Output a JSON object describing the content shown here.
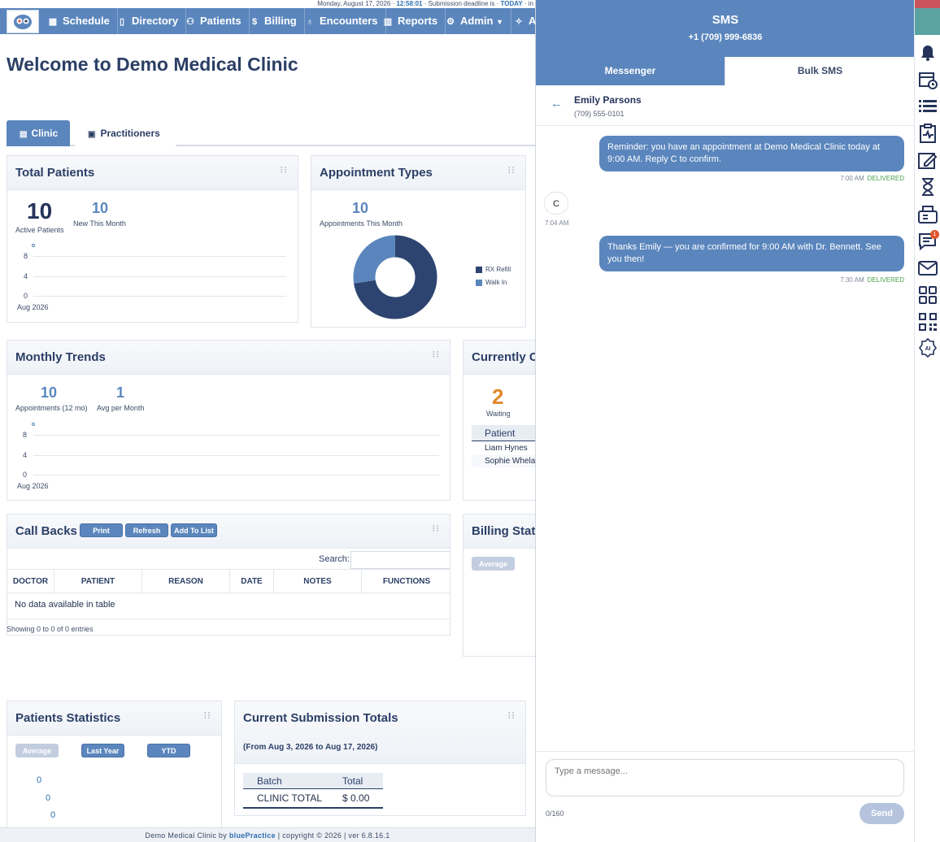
{
  "topline": {
    "date_text": "Monday, August 17, 2026 · ",
    "time": "12:58:01",
    "mid_text": " · Submission deadline is · ",
    "today": "TODAY",
    "tail": " · in"
  },
  "nav": {
    "items": [
      {
        "label": "Schedule",
        "icon": "calendar-icon"
      },
      {
        "label": "Directory",
        "icon": "book-icon"
      },
      {
        "label": "Patients",
        "icon": "people-icon"
      },
      {
        "label": "Billing",
        "icon": "dollar-icon"
      },
      {
        "label": "Encounters",
        "icon": "stethoscope-icon"
      },
      {
        "label": "Reports",
        "icon": "bar-chart-icon"
      },
      {
        "label": "Admin",
        "icon": "gear-icon"
      },
      {
        "label": "AI",
        "icon": "sparkle-icon"
      }
    ]
  },
  "welcome": "Welcome to Demo Medical Clinic",
  "tabs": {
    "clinic": "Clinic",
    "practitioners": "Practitioners"
  },
  "total_patients": {
    "title": "Total Patients",
    "active_value": "10",
    "active_label": "Active Patients",
    "new_value": "10",
    "new_label": "New This Month",
    "y_ticks": [
      "8",
      "4",
      "0"
    ],
    "x_label": "Aug 2026"
  },
  "appointment_types": {
    "title": "Appointment Types",
    "value": "10",
    "label": "Appointments This Month",
    "legend": [
      "RX Refill",
      "Walk In"
    ]
  },
  "monthly_trends": {
    "title": "Monthly Trends",
    "appts_value": "10",
    "appts_label": "Appointments (12 mo)",
    "avg_value": "1",
    "avg_label": "Avg per Month",
    "y_ticks": [
      "8",
      "4",
      "0"
    ],
    "x_label": "Aug 2026"
  },
  "currently": {
    "title": "Currently Cl",
    "waiting_value": "2",
    "waiting_label": "Waiting",
    "col_patient": "Patient",
    "rows": [
      "Liam Hynes",
      "Sophie Whela"
    ]
  },
  "callbacks": {
    "title": "Call Backs",
    "print": "Print",
    "refresh": "Refresh",
    "add": "Add To List",
    "search_label": "Search:",
    "columns": [
      "DOCTOR",
      "PATIENT",
      "REASON",
      "DATE",
      "NOTES",
      "FUNCTIONS"
    ],
    "empty": "No data available in table",
    "info": "Showing 0 to 0 of 0 entries"
  },
  "billing": {
    "title": "Billing Stati",
    "average": "Average"
  },
  "patients_stats": {
    "title": "Patients Statistics",
    "average": "Average",
    "last_year": "Last Year",
    "ytd": "YTD",
    "values": [
      "0",
      "0",
      "0"
    ]
  },
  "submission": {
    "title": "Current Submission Totals",
    "range": "(From Aug 3, 2026 to Aug 17, 2026)",
    "col_batch": "Batch",
    "col_total": "Total",
    "row_label": "CLINIC TOTAL",
    "row_value": "$ 0.00"
  },
  "footer": {
    "text": "Demo Medical Clinic by ",
    "brand": "bluePractice",
    "rest": "  |   copyright © 2026   |   ver 6.8.16.1"
  },
  "sms": {
    "title": "SMS",
    "phone": "+1 (709) 999-6836",
    "tab_messenger": "Messenger",
    "tab_bulk": "Bulk SMS",
    "contact_name": "Emily Parsons",
    "contact_phone": "(709) 555-0101",
    "messages": [
      {
        "text": "Reminder: you have an appointment at Demo Medical Clinic today at 9:00 AM. Reply C to confirm.",
        "time": "7:00 AM",
        "status": "DELIVERED"
      },
      {
        "text": "C",
        "time": "7:04 AM"
      },
      {
        "text": "Thanks Emily — you are confirmed for 9:00 AM with Dr. Bennett. See you then!",
        "time": "7:30 AM",
        "status": "DELIVERED"
      }
    ],
    "placeholder": "Type a message...",
    "counter": "0/160",
    "send": "Send"
  },
  "rail": {
    "icons": [
      "bell-icon",
      "calendar-clock-icon",
      "list-icon",
      "clipboard-pulse-icon",
      "edit-icon",
      "hourglass-icon",
      "fax-icon",
      "chat-icon",
      "mail-icon",
      "apps-grid-icon",
      "qr-code-icon",
      "ai-badge-icon"
    ],
    "chat_badge": "1"
  },
  "colors": {
    "primary": "#5b86bd",
    "navy": "#2b3f66",
    "donut_dark": "#2e4470",
    "donut_light": "#5b86bd",
    "orange": "#e08a2c",
    "delivered": "#4aa04a"
  }
}
